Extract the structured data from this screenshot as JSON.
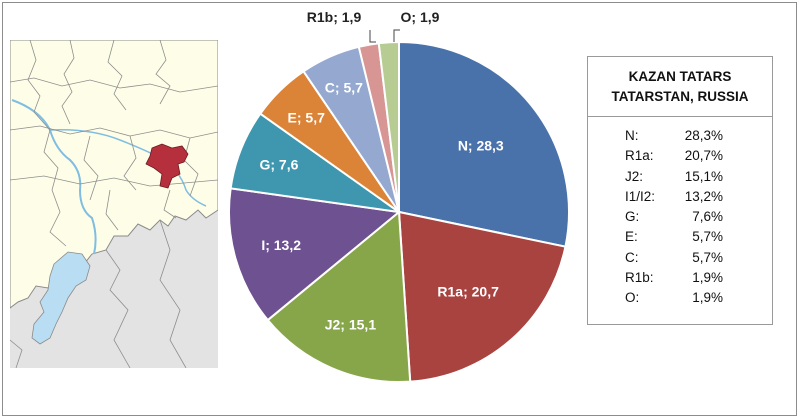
{
  "chart_data": {
    "type": "pie",
    "slices": [
      {
        "label": "N; 28,3",
        "value": 28.3,
        "color": "#4a72aa"
      },
      {
        "label": "R1a; 20,7",
        "value": 20.7,
        "color": "#a84340"
      },
      {
        "label": "J2; 15,1",
        "value": 15.1,
        "color": "#87a64a"
      },
      {
        "label": "I; 13,2",
        "value": 13.2,
        "color": "#6d5191"
      },
      {
        "label": "G; 7,6",
        "value": 7.6,
        "color": "#3e97ae"
      },
      {
        "label": "E; 5,7",
        "value": 5.7,
        "color": "#db8438"
      },
      {
        "label": "C; 5,7",
        "value": 5.7,
        "color": "#95a9d0"
      },
      {
        "label": "R1b; 1,9",
        "value": 1.9,
        "color": "#d79594"
      },
      {
        "label": "O; 1,9",
        "value": 1.9,
        "color": "#b7cc92"
      }
    ],
    "start": "12 o'clock",
    "direction": "clockwise"
  },
  "legend": {
    "title_line1": "KAZAN TATARS",
    "title_line2": "TATARSTAN, RUSSIA",
    "rows": [
      {
        "key": "N:",
        "value": "28,3%"
      },
      {
        "key": "R1a:",
        "value": "20,7%"
      },
      {
        "key": "J2:",
        "value": "15,1%"
      },
      {
        "key": "I1/I2:",
        "value": "13,2%"
      },
      {
        "key": "G:",
        "value": "7,6%"
      },
      {
        "key": "E:",
        "value": "5,7%"
      },
      {
        "key": "C:",
        "value": "5,7%"
      },
      {
        "key": "R1b:",
        "value": "1,9%"
      },
      {
        "key": "O:",
        "value": "1,9%"
      }
    ]
  },
  "map": {
    "description_colors": {
      "land": "#fefee8",
      "water": "#b9ddf2",
      "outside": "#e2e2e2",
      "highlight": "#b5303c",
      "border": "#808080"
    }
  }
}
